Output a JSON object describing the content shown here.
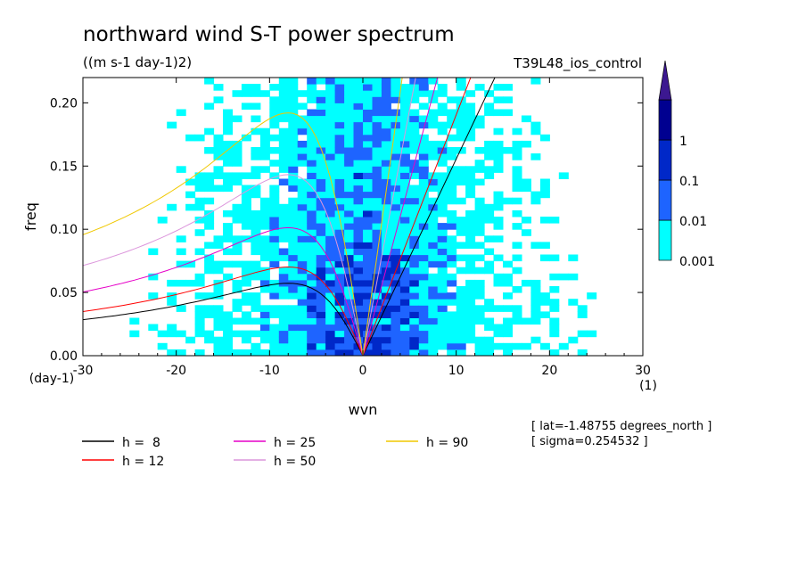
{
  "chart_data": {
    "type": "heatmap",
    "title": "northward wind S-T power spectrum",
    "units": "((m s-1 day-1)2)",
    "experiment": "T39L48_ios_control",
    "xlabel": "wvn",
    "ylabel": "freq",
    "x_unit": "(1)",
    "y_unit": "(day-1)",
    "xlim": [
      -30,
      30
    ],
    "ylim": [
      0,
      0.22
    ],
    "x_ticks": [
      -30,
      -20,
      -10,
      0,
      10,
      20,
      30
    ],
    "y_ticks": [
      0.0,
      0.05,
      0.1,
      0.15,
      0.2
    ],
    "x_tick_labels": [
      "-30",
      "-20",
      "-10",
      "0",
      "10",
      "20",
      "30"
    ],
    "y_tick_labels": [
      "0.00",
      "0.05",
      "0.10",
      "0.15",
      "0.20"
    ],
    "colorbar": {
      "levels": [
        0.001,
        0.01,
        0.1,
        1
      ],
      "labels": [
        "0.001",
        "0.01",
        "0.1",
        "1"
      ],
      "colors": [
        "#00ffff",
        "#1e64ff",
        "#0028c8",
        "#000090",
        "#3c1890"
      ]
    },
    "dispersion_curves": [
      {
        "h": 8,
        "label": "h =  8",
        "color": "#000000"
      },
      {
        "h": 12,
        "label": "h = 12",
        "color": "#ff0000"
      },
      {
        "h": 25,
        "label": "h = 25",
        "color": "#e600c8"
      },
      {
        "h": 50,
        "label": "h = 50",
        "color": "#dc96dc"
      },
      {
        "h": 90,
        "label": "h = 90",
        "color": "#f0c800"
      }
    ],
    "annotations": [
      "[ lat=-1.48755 degrees_north ]",
      "[ sigma=0.254532 ]"
    ]
  }
}
